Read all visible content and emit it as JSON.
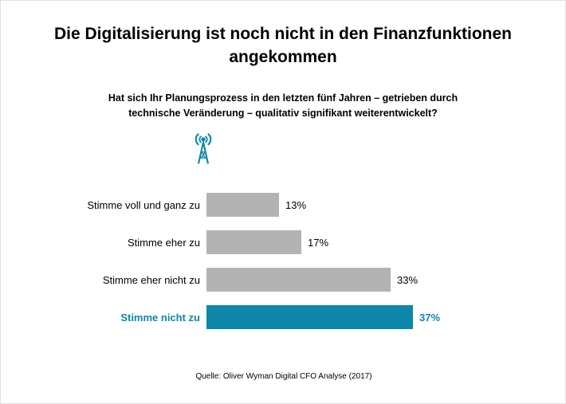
{
  "page": {
    "title": "Die Digitalisierung ist noch nicht in den Finanzfunktionen angekommen",
    "question_line1": "Hat sich Ihr Planungsprozess in den letzten fünf Jahren – getrieben durch",
    "question_line2": "technische Veränderung – qualitativ signifikant weiterentwickelt?",
    "source": "Quelle: Oliver Wyman Digital CFO Analyse (2017)"
  },
  "icons": {
    "broadcast_tower": "broadcast-tower-icon"
  },
  "colors": {
    "bar_default": "#b3b3b3",
    "bar_highlight": "#0e86a8",
    "text": "#000000"
  },
  "chart_data": {
    "type": "bar",
    "orientation": "horizontal",
    "title": "Hat sich Ihr Planungsprozess in den letzten fünf Jahren – getrieben durch technische Veränderung – qualitativ signifikant weiterentwickelt?",
    "categories": [
      "Stimme voll und ganz zu",
      "Stimme eher zu",
      "Stimme eher nicht zu",
      "Stimme nicht zu"
    ],
    "values": [
      13,
      17,
      33,
      37
    ],
    "unit": "%",
    "value_labels": [
      "13%",
      "17%",
      "33%",
      "37%"
    ],
    "highlight_index": 3,
    "xlim": [
      0,
      40
    ],
    "grid": false,
    "legend": false,
    "xlabel": "",
    "ylabel": ""
  }
}
